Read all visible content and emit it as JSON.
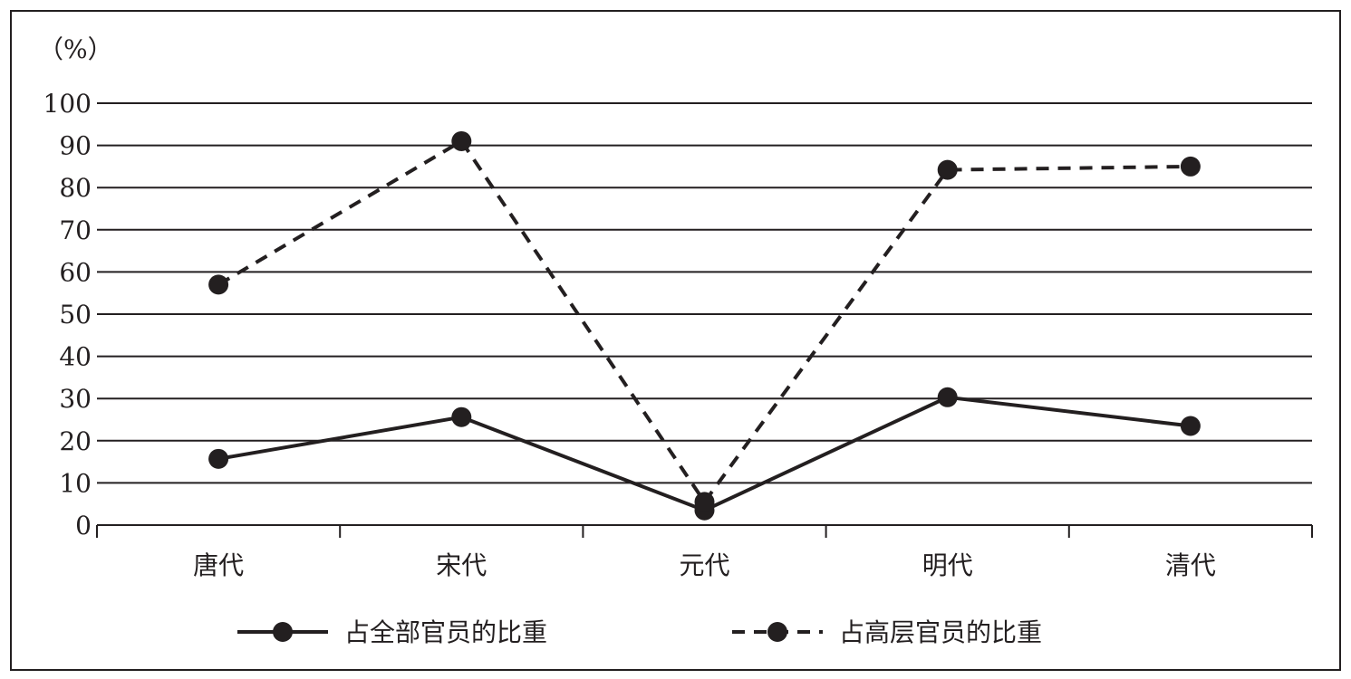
{
  "chart_data": {
    "type": "line",
    "unit_label": "（%）",
    "categories": [
      "唐代",
      "宋代",
      "元代",
      "明代",
      "清代"
    ],
    "ylim": [
      0,
      100
    ],
    "yticks": [
      0,
      10,
      20,
      30,
      40,
      50,
      60,
      70,
      80,
      90,
      100
    ],
    "grid": true,
    "legend_position": "bottom",
    "series": [
      {
        "name": "占全部官员的比重",
        "style": "solid",
        "values": [
          15.7,
          25.6,
          3.5,
          30.3,
          23.5
        ]
      },
      {
        "name": "占高层官员的比重",
        "style": "dashed",
        "values": [
          57,
          91,
          5.5,
          84.2,
          85
        ]
      }
    ],
    "colors": {
      "line": "#231f20",
      "frame": "#231f20"
    }
  }
}
